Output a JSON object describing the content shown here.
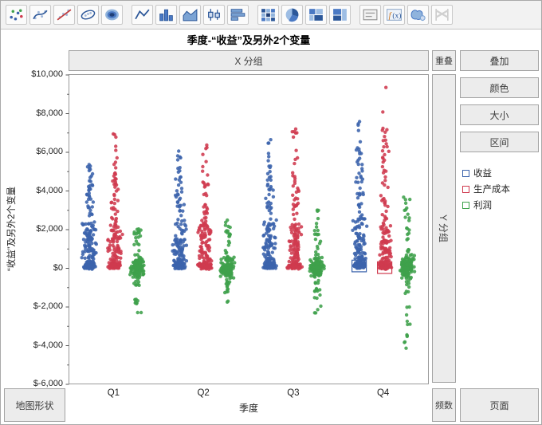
{
  "toolbar": {
    "groups": [
      [
        "points",
        "smoother",
        "line-of-fit",
        "ellipse",
        "contour"
      ],
      [
        "line",
        "bar",
        "area",
        "box-plot",
        "histogram"
      ],
      [
        "heatmap",
        "pie",
        "mosaic",
        "treemap"
      ],
      [
        "caption-box",
        "formula",
        "map-shapes",
        "parallel"
      ]
    ]
  },
  "title": "季度-“收益”及另外2个变量",
  "zones": {
    "x_group": "X 分组",
    "overlap": "重叠",
    "y_group": "Y 分组",
    "frequency": "频数",
    "page": "页面",
    "map_shapes": "地图形状"
  },
  "right_panel": {
    "buttons": [
      "叠加",
      "颜色",
      "大小",
      "区间"
    ]
  },
  "legend": {
    "items": [
      {
        "label": "收益",
        "color": "#3b63ac"
      },
      {
        "label": "生产成本",
        "color": "#cf3a4e"
      },
      {
        "label": "利润",
        "color": "#3fa14b"
      }
    ]
  },
  "chart_data": {
    "type": "scatter",
    "title": "季度-“收益”及另外2个变量",
    "xlabel": "季度",
    "ylabel": "“收益”及另外2个变量",
    "categories": [
      "Q1",
      "Q2",
      "Q3",
      "Q4"
    ],
    "ylim": [
      -6000,
      10000
    ],
    "ytick_labels": [
      "$10,000",
      "$8,000",
      "$6,000",
      "$4,000",
      "$2,000",
      "$0",
      "$-2,000",
      "$-4,000",
      "$-6,000"
    ],
    "grid": false,
    "legend_position": "right",
    "point_style": {
      "radius": 2.2,
      "opacity": 0.88
    },
    "series": [
      {
        "name": "收益",
        "color": "#3b63ac",
        "x_offset": -30,
        "quarters": [
          {
            "segments": [
              [
                -60,
                360,
                48,
                8,
                2
              ],
              [
                0,
                2500,
                112,
                10,
                1
              ],
              [
                2500,
                4300,
                26,
                6,
                0
              ],
              [
                4300,
                5600,
                12,
                4,
                0
              ]
            ]
          },
          {
            "segments": [
              [
                -60,
                360,
                48,
                8,
                2
              ],
              [
                0,
                2500,
                112,
                10,
                1
              ],
              [
                2500,
                4700,
                26,
                6,
                0
              ],
              [
                4700,
                6100,
                10,
                4,
                0
              ]
            ]
          },
          {
            "segments": [
              [
                -60,
                360,
                48,
                8,
                2
              ],
              [
                0,
                2500,
                112,
                10,
                1
              ],
              [
                2500,
                5000,
                26,
                6,
                0
              ],
              [
                5000,
                6800,
                10,
                4,
                0
              ]
            ]
          },
          {
            "segments": [
              [
                -60,
                360,
                52,
                8,
                2
              ],
              [
                0,
                2600,
                118,
                10,
                1
              ],
              [
                2600,
                5600,
                30,
                6,
                0
              ],
              [
                5600,
                7600,
                12,
                4,
                0
              ]
            ]
          }
        ]
      },
      {
        "name": "生产成本",
        "color": "#cf3a4e",
        "x_offset": 2,
        "quarters": [
          {
            "segments": [
              [
                -60,
                320,
                44,
                8,
                2
              ],
              [
                0,
                2300,
                108,
                10,
                1
              ],
              [
                2300,
                4000,
                20,
                6,
                0
              ],
              [
                3800,
                5900,
                18,
                5,
                0
              ],
              [
                5900,
                7000,
                5,
                3,
                0
              ]
            ]
          },
          {
            "segments": [
              [
                -60,
                320,
                44,
                8,
                2
              ],
              [
                0,
                2300,
                108,
                10,
                1
              ],
              [
                2300,
                4500,
                26,
                6,
                0
              ],
              [
                4500,
                6600,
                8,
                4,
                0
              ]
            ]
          },
          {
            "segments": [
              [
                -60,
                320,
                44,
                8,
                2
              ],
              [
                0,
                2300,
                108,
                10,
                1
              ],
              [
                2300,
                5000,
                26,
                6,
                0
              ],
              [
                5000,
                7400,
                10,
                4,
                0
              ]
            ]
          },
          {
            "segments": [
              [
                -60,
                320,
                48,
                8,
                2
              ],
              [
                0,
                2400,
                112,
                10,
                1
              ],
              [
                2400,
                6500,
                34,
                6,
                0
              ],
              [
                6500,
                8100,
                8,
                4,
                0
              ],
              [
                9200,
                9400,
                1,
                2,
                0
              ]
            ]
          }
        ]
      },
      {
        "name": "利润",
        "color": "#3fa14b",
        "x_offset": 30,
        "quarters": [
          {
            "segments": [
              [
                -560,
                660,
                128,
                10,
                2
              ],
              [
                660,
                2050,
                20,
                5,
                0
              ],
              [
                -2560,
                -560,
                18,
                5,
                0
              ]
            ]
          },
          {
            "segments": [
              [
                -560,
                660,
                128,
                10,
                2
              ],
              [
                660,
                2500,
                20,
                5,
                0
              ],
              [
                -2260,
                -560,
                16,
                5,
                0
              ]
            ]
          },
          {
            "segments": [
              [
                -560,
                660,
                128,
                10,
                2
              ],
              [
                660,
                3100,
                20,
                5,
                0
              ],
              [
                -2760,
                -560,
                18,
                5,
                0
              ]
            ]
          },
          {
            "segments": [
              [
                -620,
                720,
                132,
                10,
                2
              ],
              [
                720,
                3700,
                22,
                5,
                0
              ],
              [
                -4350,
                -620,
                20,
                5,
                0
              ]
            ]
          }
        ]
      }
    ],
    "interval_boxes": [
      {
        "series": 0,
        "quarter": 3,
        "lo": -180,
        "hi": 420
      },
      {
        "series": 1,
        "quarter": 3,
        "lo": -260,
        "hi": 340
      }
    ]
  }
}
